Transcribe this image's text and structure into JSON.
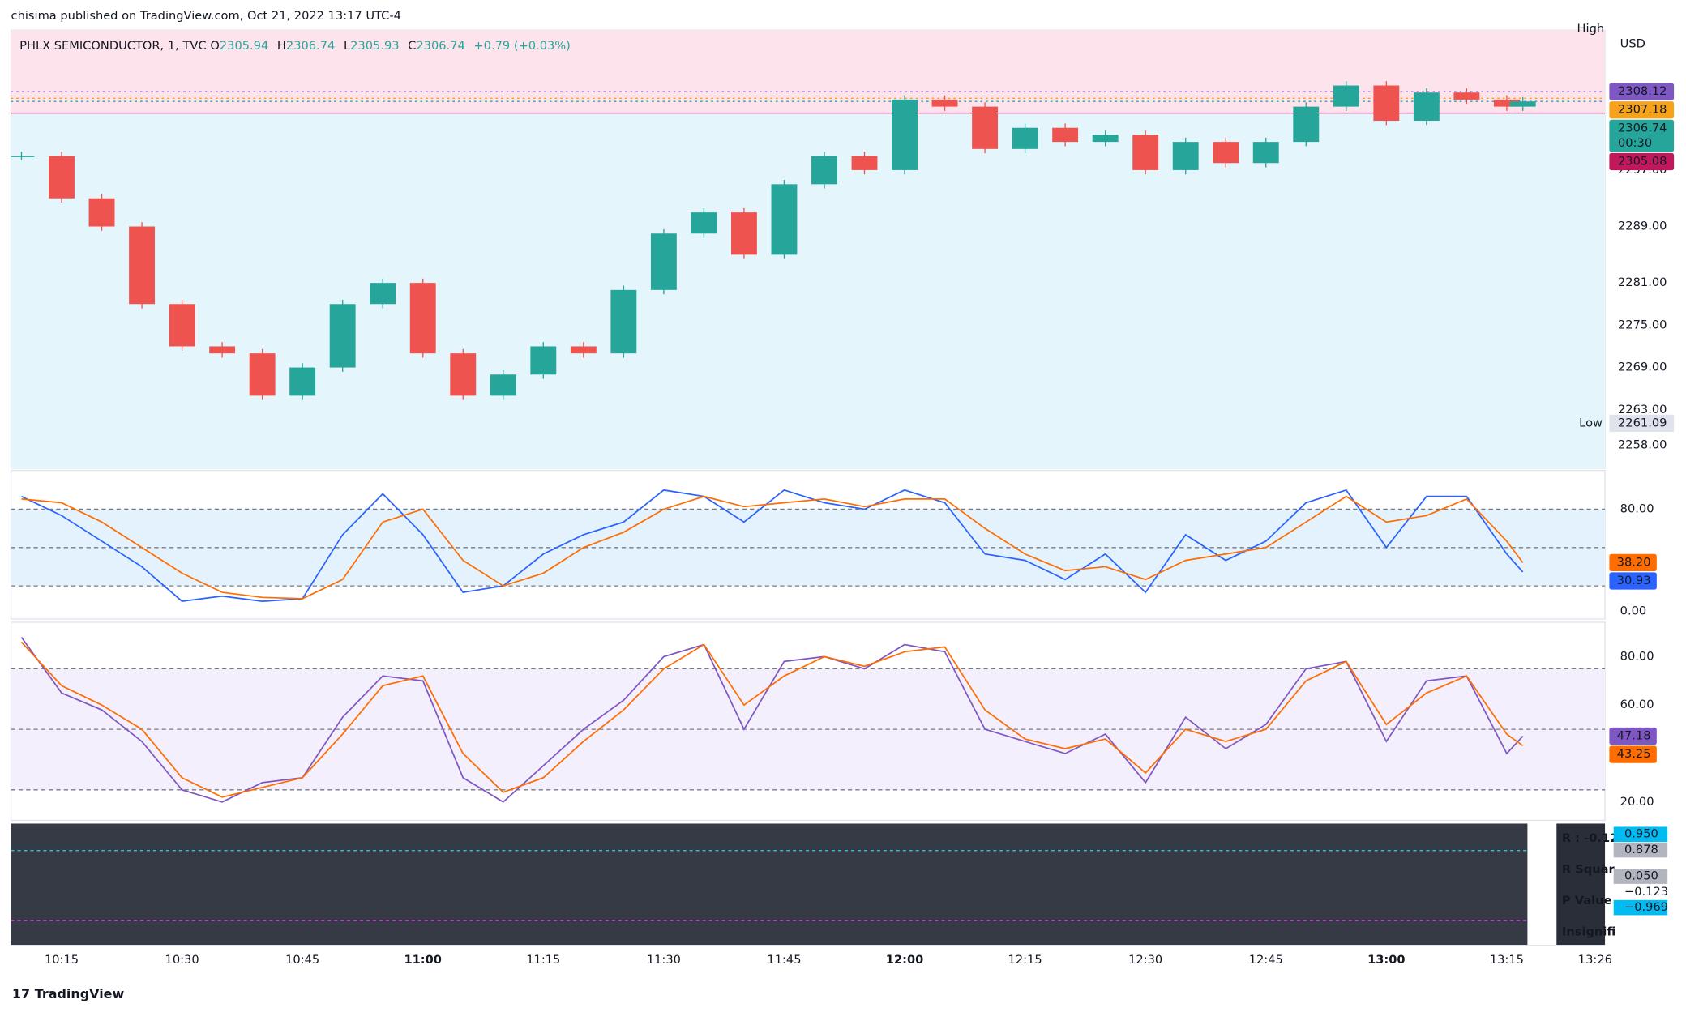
{
  "header": {
    "published": "chisima published on TradingView.com, Oct 21, 2022 13:17 UTC-4",
    "footer": "TradingView"
  },
  "chart_data": {
    "type": "candlestick",
    "symbol": "PHLX SEMICONDUCTOR, 1, TVC",
    "ohlc_legend": [
      {
        "key": "O",
        "value": "2305.94"
      },
      {
        "key": "H",
        "value": "2306.74"
      },
      {
        "key": "L",
        "value": "2305.93"
      },
      {
        "key": "C",
        "value": "2306.74"
      }
    ],
    "change": "+0.79 (+0.03%)",
    "currency": "USD",
    "x": [
      "10:10",
      "10:15",
      "10:20",
      "10:25",
      "10:30",
      "10:35",
      "10:40",
      "10:45",
      "10:50",
      "10:55",
      "11:00",
      "11:05",
      "11:10",
      "11:15",
      "11:20",
      "11:25",
      "11:30",
      "11:35",
      "11:40",
      "11:45",
      "11:50",
      "11:55",
      "12:00",
      "12:05",
      "12:10",
      "12:15",
      "12:20",
      "12:25",
      "12:30",
      "12:35",
      "12:40",
      "12:45",
      "12:50",
      "12:55",
      "13:00",
      "13:05",
      "13:10",
      "13:15",
      "13:17"
    ],
    "xticks": [
      "10:15",
      "10:30",
      "10:45",
      "11:00",
      "11:15",
      "11:30",
      "11:45",
      "12:00",
      "12:15",
      "12:30",
      "12:45",
      "13:00",
      "13:15",
      "13:26"
    ],
    "series": [
      {
        "name": "close",
        "up_color": "#26a69a",
        "down_color": "#ef5350",
        "values": [
          2299,
          2293,
          2289,
          2278,
          2272,
          2271,
          2265,
          2269,
          2278,
          2281,
          2271,
          2265,
          2268,
          2272,
          2271,
          2280,
          2288,
          2291,
          2285,
          2295,
          2299,
          2297,
          2307,
          2306,
          2300,
          2303,
          2301,
          2302,
          2297,
          2301,
          2298,
          2301,
          2306,
          2309,
          2304,
          2308,
          2307,
          2306,
          2306.74
        ]
      }
    ],
    "ylim": [
      2254.7,
      2316.85
    ],
    "yticks": [
      {
        "value": 2258,
        "label": "2258.00"
      },
      {
        "value": 2263,
        "label": "2263.00"
      },
      {
        "value": 2269,
        "label": "2269.00"
      },
      {
        "value": 2275,
        "label": "2275.00"
      },
      {
        "value": 2281,
        "label": "2281.00"
      },
      {
        "value": 2289,
        "label": "2289.00"
      },
      {
        "value": 2297,
        "label": "2297.00"
      }
    ],
    "price_lines": [
      {
        "value": 2308.12,
        "color": "#7e57c2"
      },
      {
        "value": 2307.18,
        "color": "#f7a21b"
      },
      {
        "value": 2306.74,
        "color": "#26a69a",
        "countdown": "00:30"
      },
      {
        "value": 2305.08,
        "color": "#c2185b"
      }
    ],
    "high_label": "High",
    "low": {
      "label": "Low",
      "value": 2261.09
    },
    "oscillators": [
      {
        "ylim": [
          -5.9,
          110.3
        ],
        "yticks": [
          {
            "value": 0,
            "label": "0.00"
          },
          {
            "value": 80,
            "label": "80.00"
          }
        ],
        "levels": [
          80,
          50,
          20
        ],
        "band_color": "#e3f2fd",
        "series": [
          {
            "color": "#2962ff",
            "last_label": "30.93",
            "values": [
              90,
              75,
              55,
              35,
              8,
              12,
              8,
              10,
              60,
              92,
              60,
              15,
              20,
              45,
              60,
              70,
              95,
              90,
              70,
              95,
              85,
              80,
              95,
              85,
              45,
              40,
              25,
              45,
              15,
              60,
              40,
              55,
              85,
              95,
              50,
              90,
              90,
              45,
              30.93
            ]
          },
          {
            "color": "#ff6d00",
            "last_label": "38.20",
            "values": [
              88,
              85,
              70,
              50,
              30,
              15,
              11,
              10,
              25,
              70,
              80,
              40,
              20,
              30,
              50,
              62,
              80,
              90,
              82,
              85,
              88,
              82,
              88,
              88,
              65,
              45,
              32,
              35,
              25,
              40,
              45,
              50,
              70,
              90,
              70,
              75,
              88,
              55,
              38.2
            ]
          }
        ]
      },
      {
        "ylim": [
          12.4,
          94.2
        ],
        "yticks": [
          {
            "value": 20,
            "label": "20.00"
          },
          {
            "value": 60,
            "label": "60.00"
          },
          {
            "value": 80,
            "label": "80.00"
          }
        ],
        "levels": [
          75,
          50,
          25
        ],
        "band_color": "#f3effc",
        "series": [
          {
            "color": "#7e57c2",
            "last_label": "47.18",
            "values": [
              88,
              65,
              58,
              45,
              25,
              20,
              28,
              30,
              55,
              72,
              70,
              30,
              20,
              35,
              50,
              62,
              80,
              85,
              50,
              78,
              80,
              75,
              85,
              82,
              50,
              45,
              40,
              48,
              28,
              55,
              42,
              52,
              75,
              78,
              45,
              70,
              72,
              40,
              47.18
            ]
          },
          {
            "color": "#ff6d00",
            "last_label": "43.25",
            "values": [
              86,
              68,
              60,
              50,
              30,
              22,
              26,
              30,
              48,
              68,
              72,
              40,
              24,
              30,
              45,
              58,
              75,
              85,
              60,
              72,
              80,
              76,
              82,
              84,
              58,
              46,
              42,
              46,
              32,
              50,
              45,
              50,
              70,
              78,
              52,
              65,
              72,
              48,
              43.25
            ]
          }
        ]
      }
    ],
    "stats_panel": {
      "labels": [
        "R : -0.12",
        "R Squar",
        "P Value",
        "Insignifi"
      ],
      "badges": [
        {
          "text": "0.950",
          "color": "#00bcf2"
        },
        {
          "text": "0.878",
          "color": "#b2b5be"
        },
        {
          "text": "0.050",
          "color": "#b2b5be"
        },
        {
          "text": "−0.123",
          "color": "#ffffff"
        },
        {
          "text": "−0.969",
          "color": "#00bcf2"
        }
      ]
    }
  }
}
